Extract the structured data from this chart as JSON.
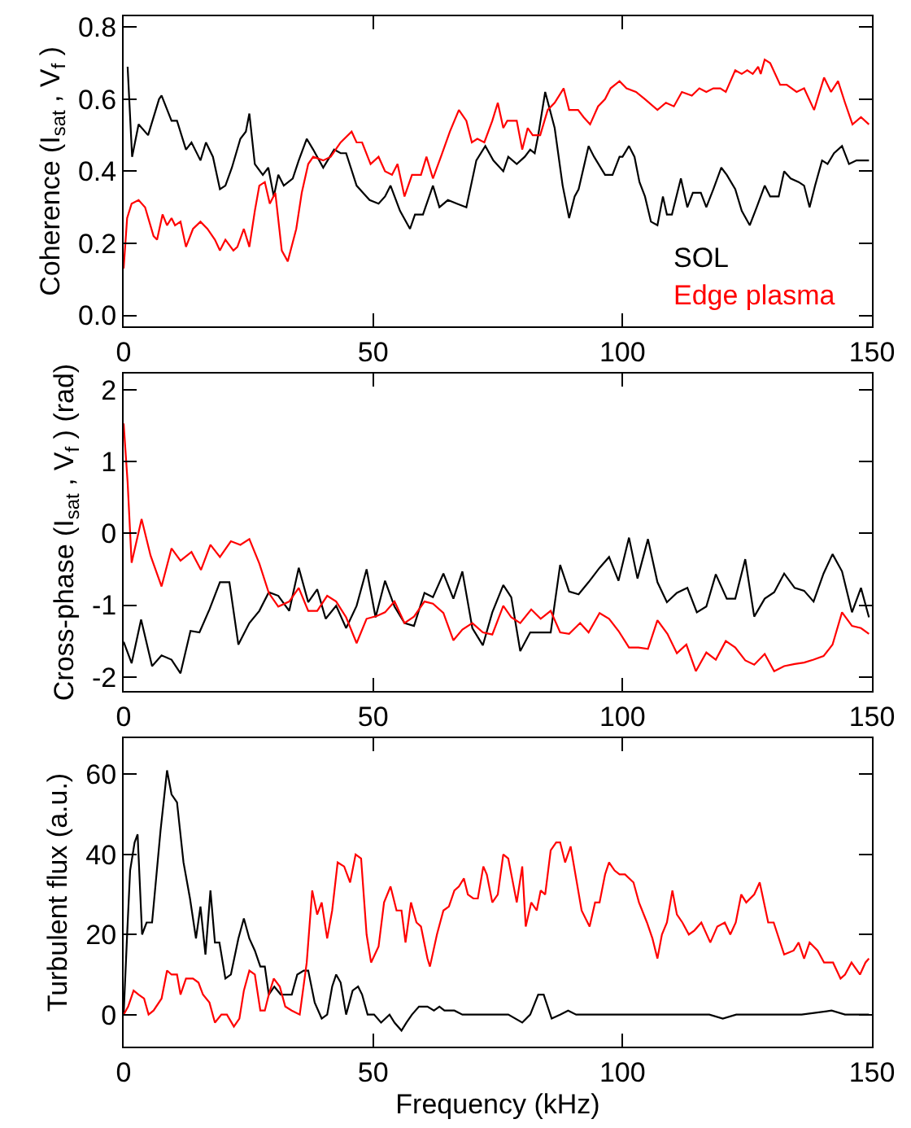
{
  "chart_data": [
    {
      "type": "line",
      "ylabel": "Coherence (I$_{sat}$ , V$_{f}$ )",
      "xlim": [
        0,
        150
      ],
      "xticks": [
        0,
        50,
        100,
        150
      ],
      "ylim": [
        -0.03,
        0.83
      ],
      "yticks": [
        {
          "value": 0,
          "label": "0.0"
        },
        0.2,
        0.4,
        0.6,
        0.8
      ],
      "series": [
        {
          "name": "SOL",
          "color": "#000000",
          "x": [
            0.8,
            1.7,
            3.0,
            4.9,
            7.1,
            7.6,
            9.6,
            10.7,
            12.5,
            13.6,
            15.4,
            16.5,
            17.9,
            19.3,
            20.4,
            21.7,
            23.4,
            24.5,
            25.2,
            26.3,
            27.9,
            29.0,
            30.1,
            31.0,
            32.1,
            33.9,
            35.1,
            36.7,
            38.0,
            40.0,
            42.2,
            43.5,
            44.6,
            46.7,
            48.0,
            49.3,
            51.1,
            52.4,
            53.5,
            55.4,
            57.4,
            58.4,
            60.0,
            62.0,
            63.3,
            65.0,
            66.8,
            68.7,
            70.7,
            72.5,
            74.1,
            76.1,
            77.1,
            78.8,
            80.4,
            81.5,
            82.4,
            83.1,
            84.5,
            86.4,
            88.0,
            89.3,
            90.4,
            91.2,
            93.2,
            94.3,
            96.5,
            98.0,
            99.4,
            100.0,
            101.3,
            102.4,
            103.4,
            104.5,
            105.7,
            107.0,
            108.1,
            108.9,
            109.9,
            111.7,
            113.0,
            114.1,
            115.7,
            116.8,
            118.2,
            119.8,
            120.9,
            122.6,
            123.9,
            125.5,
            126.9,
            128.5,
            129.6,
            131.3,
            132.4,
            133.7,
            135.3,
            136.4,
            137.5,
            138.6,
            140.0,
            141.1,
            142.4,
            144.0,
            145.4,
            146.9,
            148.3,
            149.4
          ],
          "values": [
            0.69,
            0.44,
            0.53,
            0.5,
            0.6,
            0.61,
            0.54,
            0.54,
            0.46,
            0.48,
            0.43,
            0.48,
            0.44,
            0.35,
            0.36,
            0.41,
            0.49,
            0.51,
            0.56,
            0.42,
            0.39,
            0.41,
            0.33,
            0.39,
            0.36,
            0.38,
            0.43,
            0.49,
            0.46,
            0.41,
            0.46,
            0.45,
            0.45,
            0.36,
            0.34,
            0.32,
            0.31,
            0.33,
            0.36,
            0.29,
            0.24,
            0.28,
            0.28,
            0.36,
            0.3,
            0.32,
            0.31,
            0.3,
            0.43,
            0.47,
            0.43,
            0.4,
            0.44,
            0.42,
            0.44,
            0.46,
            0.45,
            0.5,
            0.62,
            0.52,
            0.36,
            0.27,
            0.33,
            0.35,
            0.47,
            0.44,
            0.39,
            0.39,
            0.44,
            0.44,
            0.47,
            0.44,
            0.37,
            0.33,
            0.26,
            0.25,
            0.33,
            0.28,
            0.28,
            0.38,
            0.3,
            0.34,
            0.34,
            0.3,
            0.35,
            0.41,
            0.39,
            0.35,
            0.29,
            0.25,
            0.3,
            0.36,
            0.33,
            0.33,
            0.4,
            0.38,
            0.37,
            0.36,
            0.3,
            0.36,
            0.43,
            0.42,
            0.45,
            0.47,
            0.42,
            0.43,
            0.43,
            0.43
          ]
        },
        {
          "name": "Edge plasma",
          "color": "#ff0000",
          "x": [
            0.0,
            0.7,
            1.6,
            3.0,
            4.3,
            6.0,
            6.7,
            7.8,
            8.7,
            9.6,
            10.3,
            11.4,
            12.5,
            13.9,
            15.4,
            16.8,
            18.3,
            19.3,
            20.4,
            22.0,
            22.8,
            24.1,
            25.2,
            26.3,
            27.2,
            28.3,
            29.3,
            30.4,
            31.7,
            32.9,
            34.6,
            35.7,
            37.0,
            38.0,
            40.0,
            41.5,
            43.5,
            45.7,
            46.7,
            47.8,
            49.5,
            51.1,
            52.4,
            53.8,
            54.9,
            56.3,
            57.8,
            59.6,
            60.7,
            62.0,
            63.6,
            65.4,
            67.2,
            68.7,
            69.8,
            70.9,
            72.3,
            73.9,
            75.0,
            76.1,
            76.9,
            78.8,
            79.9,
            81.0,
            82.0,
            83.5,
            85.0,
            86.4,
            88.2,
            89.3,
            91.1,
            92.2,
            93.5,
            95.1,
            96.5,
            97.6,
            99.4,
            100.8,
            102.7,
            104.5,
            107.0,
            108.7,
            110.3,
            111.9,
            113.9,
            115.4,
            116.8,
            118.2,
            119.6,
            120.7,
            122.6,
            123.9,
            125.0,
            126.1,
            127.2,
            127.7,
            128.5,
            129.6,
            131.6,
            132.9,
            134.9,
            136.4,
            138.4,
            140.4,
            141.8,
            143.2,
            144.6,
            146.1,
            147.8,
            149.4
          ],
          "values": [
            0.13,
            0.27,
            0.31,
            0.32,
            0.3,
            0.22,
            0.21,
            0.28,
            0.25,
            0.27,
            0.25,
            0.26,
            0.19,
            0.24,
            0.26,
            0.24,
            0.21,
            0.18,
            0.21,
            0.18,
            0.19,
            0.24,
            0.19,
            0.29,
            0.36,
            0.37,
            0.31,
            0.34,
            0.18,
            0.15,
            0.24,
            0.34,
            0.42,
            0.44,
            0.43,
            0.44,
            0.48,
            0.51,
            0.48,
            0.48,
            0.42,
            0.44,
            0.4,
            0.39,
            0.42,
            0.33,
            0.39,
            0.39,
            0.44,
            0.38,
            0.44,
            0.51,
            0.57,
            0.54,
            0.48,
            0.49,
            0.48,
            0.54,
            0.59,
            0.52,
            0.54,
            0.54,
            0.46,
            0.52,
            0.5,
            0.5,
            0.57,
            0.59,
            0.63,
            0.57,
            0.57,
            0.55,
            0.53,
            0.58,
            0.6,
            0.63,
            0.65,
            0.63,
            0.62,
            0.6,
            0.57,
            0.59,
            0.58,
            0.62,
            0.61,
            0.63,
            0.62,
            0.63,
            0.63,
            0.62,
            0.68,
            0.67,
            0.68,
            0.67,
            0.69,
            0.67,
            0.71,
            0.7,
            0.64,
            0.64,
            0.62,
            0.63,
            0.57,
            0.66,
            0.62,
            0.65,
            0.59,
            0.53,
            0.55,
            0.53
          ]
        }
      ]
    },
    {
      "type": "line",
      "ylabel": "Cross-phase (I$_{sat}$ , V$_{f}$ ) (rad)",
      "xlim": [
        0,
        150
      ],
      "xticks": [
        0,
        50,
        100,
        150
      ],
      "ylim": [
        -2.2,
        2.23
      ],
      "yticks": [
        -2,
        -1,
        0,
        1,
        2
      ],
      "series": [
        {
          "color": "#000000",
          "x": [
            0,
            1.6,
            3.5,
            5.7,
            7.6,
            9.6,
            11.4,
            13.4,
            15.2,
            17.2,
            19.3,
            21.2,
            23.0,
            25.2,
            27.2,
            29.1,
            31.0,
            33.2,
            35.1,
            37.0,
            38.8,
            40.5,
            42.6,
            44.6,
            46.7,
            48.7,
            50.5,
            52.4,
            54.3,
            56.3,
            58.2,
            60.3,
            62.0,
            64.1,
            66.1,
            67.9,
            69.9,
            72.0,
            73.9,
            76.1,
            77.7,
            79.5,
            81.5,
            85.6,
            87.5,
            89.3,
            91.2,
            93.2,
            95.4,
            97.3,
            99.2,
            101.3,
            103.0,
            105.1,
            107.0,
            108.9,
            110.9,
            113.0,
            114.9,
            116.8,
            118.7,
            120.9,
            122.6,
            124.6,
            126.4,
            128.5,
            130.4,
            132.4,
            134.5,
            136.4,
            138.3,
            140.3,
            142.1,
            144.0,
            146.0,
            147.8,
            149.4
          ],
          "values": [
            -1.51,
            -1.81,
            -1.2,
            -1.85,
            -1.7,
            -1.76,
            -1.95,
            -1.36,
            -1.38,
            -1.06,
            -0.68,
            -0.68,
            -1.55,
            -1.25,
            -1.08,
            -0.82,
            -0.87,
            -1.08,
            -0.48,
            -0.96,
            -0.78,
            -1.19,
            -1.01,
            -1.32,
            -1.01,
            -0.5,
            -1.17,
            -0.66,
            -1.02,
            -1.25,
            -1.29,
            -0.83,
            -0.89,
            -0.56,
            -0.91,
            -0.53,
            -1.32,
            -1.56,
            -1.1,
            -0.72,
            -0.89,
            -1.64,
            -1.38,
            -1.38,
            -0.44,
            -0.81,
            -0.85,
            -0.68,
            -0.48,
            -0.33,
            -0.66,
            -0.06,
            -0.63,
            -0.08,
            -0.68,
            -0.96,
            -0.83,
            -0.76,
            -1.1,
            -1.02,
            -0.57,
            -0.91,
            -0.91,
            -0.36,
            -1.16,
            -0.91,
            -0.82,
            -0.56,
            -0.76,
            -0.8,
            -0.95,
            -0.56,
            -0.29,
            -0.53,
            -1.1,
            -0.76,
            -1.17
          ]
        },
        {
          "color": "#ff0000",
          "x": [
            0,
            0.8,
            1.6,
            3.6,
            5.4,
            7.6,
            9.6,
            11.4,
            13.6,
            15.5,
            17.4,
            19.3,
            21.5,
            23.4,
            25.2,
            27.2,
            29.1,
            31.0,
            33.2,
            35.1,
            37.0,
            38.8,
            40.8,
            42.6,
            44.6,
            46.7,
            48.7,
            50.8,
            52.4,
            54.3,
            56.3,
            58.2,
            60.3,
            62.0,
            64.1,
            66.1,
            67.9,
            69.9,
            72.0,
            73.9,
            76.1,
            77.7,
            79.5,
            81.7,
            83.6,
            85.6,
            87.5,
            89.3,
            91.5,
            93.2,
            95.4,
            97.3,
            99.2,
            101.3,
            103.2,
            105.1,
            107.0,
            109.0,
            110.9,
            112.8,
            114.7,
            116.8,
            118.7,
            120.7,
            122.6,
            124.6,
            126.4,
            128.5,
            130.4,
            132.4,
            134.5,
            136.4,
            138.3,
            140.3,
            142.1,
            144.0,
            146.0,
            147.8,
            149.4
          ],
          "values": [
            1.53,
            0.71,
            -0.41,
            0.2,
            -0.31,
            -0.74,
            -0.21,
            -0.38,
            -0.26,
            -0.51,
            -0.16,
            -0.33,
            -0.11,
            -0.16,
            -0.08,
            -0.42,
            -0.83,
            -1.02,
            -0.95,
            -0.76,
            -1.08,
            -1.08,
            -0.87,
            -0.95,
            -1.17,
            -1.53,
            -1.19,
            -1.15,
            -1.1,
            -0.95,
            -1.25,
            -1.16,
            -0.95,
            -0.98,
            -1.11,
            -1.49,
            -1.34,
            -1.25,
            -1.38,
            -1.41,
            -1.01,
            -1.17,
            -1.25,
            -1.06,
            -1.19,
            -1.08,
            -1.38,
            -1.4,
            -1.25,
            -1.38,
            -1.11,
            -1.19,
            -1.36,
            -1.59,
            -1.59,
            -1.61,
            -1.21,
            -1.4,
            -1.67,
            -1.55,
            -1.92,
            -1.66,
            -1.76,
            -1.5,
            -1.59,
            -1.77,
            -1.83,
            -1.68,
            -1.92,
            -1.85,
            -1.82,
            -1.8,
            -1.76,
            -1.71,
            -1.55,
            -1.1,
            -1.29,
            -1.32,
            -1.4
          ]
        }
      ]
    },
    {
      "type": "line",
      "xlabel": "Frequency (kHz)",
      "ylabel": "Turbulent flux (a.u.)",
      "xlim": [
        0,
        150
      ],
      "xticks": [
        0,
        50,
        100,
        150
      ],
      "ylim": [
        -8,
        69
      ],
      "yticks": [
        0,
        20,
        40,
        60
      ],
      "series": [
        {
          "color": "#000000",
          "x": [
            0,
            0.7,
            1.3,
            2.2,
            2.8,
            3.7,
            4.6,
            5.7,
            7.4,
            8.7,
            9.6,
            10.7,
            12.0,
            13.3,
            14.5,
            15.4,
            16.4,
            17.4,
            18.3,
            19.2,
            20.4,
            21.5,
            23.0,
            24.1,
            25.2,
            26.3,
            27.4,
            28.3,
            29.1,
            30.2,
            31.5,
            33.7,
            34.8,
            36.1,
            37.0,
            38.3,
            39.7,
            40.8,
            41.8,
            42.6,
            43.5,
            44.6,
            45.9,
            47.0,
            47.8,
            48.9,
            50.2,
            51.6,
            53.3,
            54.3,
            55.7,
            56.7,
            57.8,
            59.2,
            60.9,
            62.2,
            63.3,
            64.3,
            66.3,
            67.9,
            69.8,
            71.7,
            73.4,
            76.1,
            77.1,
            79.9,
            81.5,
            83.1,
            84.2,
            85.8,
            87.5,
            89.1,
            90.7,
            94.5,
            100,
            105.4,
            110.9,
            117.4,
            120.1,
            122.8,
            129.9,
            135.9,
            141.9,
            144.6,
            149.4
          ],
          "values": [
            0,
            20,
            36,
            43,
            45,
            20,
            23,
            23,
            46,
            61,
            55,
            53,
            38,
            29,
            19,
            27,
            15,
            31,
            18,
            18,
            9,
            10,
            19,
            24,
            19,
            16,
            12,
            12,
            5,
            7,
            5,
            5,
            10,
            11,
            11,
            3,
            -1,
            0,
            7,
            10,
            8,
            0,
            6,
            7,
            5,
            0,
            0,
            -2,
            0,
            -2,
            -4,
            -2,
            0,
            2,
            2,
            1,
            2,
            1,
            1,
            0,
            0,
            0,
            0,
            0,
            0,
            -2,
            0,
            5,
            5,
            -1,
            0,
            1,
            0,
            0,
            0,
            0,
            0,
            0,
            -1,
            0,
            0,
            0,
            1,
            0,
            0
          ]
        },
        {
          "color": "#ff0000",
          "x": [
            0,
            0.9,
            2.0,
            3.0,
            4.1,
            5.0,
            6.0,
            7.6,
            8.7,
            9.6,
            10.7,
            11.4,
            12.5,
            13.9,
            15.0,
            15.9,
            17.2,
            18.3,
            19.6,
            20.7,
            22.1,
            23.2,
            24.1,
            25.2,
            26.3,
            27.4,
            28.3,
            29.1,
            30.1,
            31.3,
            32.4,
            33.7,
            35.3,
            36.7,
            37.8,
            38.8,
            39.7,
            40.8,
            41.8,
            42.9,
            44.2,
            45.4,
            46.5,
            47.6,
            48.7,
            49.6,
            51.1,
            52.2,
            53.5,
            54.7,
            55.7,
            56.5,
            57.6,
            58.7,
            59.6,
            60.9,
            61.4,
            62.8,
            64.1,
            65.2,
            66.3,
            67.2,
            68.2,
            69.0,
            70.1,
            71.0,
            72.1,
            72.8,
            73.9,
            75.0,
            76.1,
            77.1,
            78.8,
            79.9,
            80.6,
            81.7,
            82.8,
            83.6,
            84.5,
            85.6,
            86.7,
            87.5,
            88.5,
            89.6,
            90.7,
            91.8,
            93.4,
            94.5,
            95.4,
            96.5,
            97.3,
            98.4,
            99.4,
            100.5,
            102.2,
            103.3,
            104.9,
            106.0,
            107.0,
            107.9,
            108.9,
            110.0,
            110.9,
            112.0,
            113.3,
            114.4,
            115.8,
            117.6,
            119.0,
            120.5,
            121.6,
            122.7,
            123.8,
            124.8,
            126.4,
            127.5,
            129.2,
            130.3,
            132.4,
            134.3,
            135.3,
            136.4,
            137.5,
            139.1,
            140.4,
            142.2,
            143.7,
            144.6,
            145.9,
            147.6,
            148.7,
            149.4
          ],
          "values": [
            0,
            2,
            6,
            5,
            4,
            0,
            1,
            4,
            11,
            10,
            10,
            5,
            9,
            9,
            8,
            5,
            3,
            -2,
            0,
            0,
            -3,
            -1,
            6,
            11,
            10,
            1,
            1,
            5,
            9,
            7,
            2,
            1,
            0,
            13,
            31,
            25,
            28,
            19,
            26,
            38,
            37,
            33,
            40,
            39,
            20,
            13,
            17,
            28,
            32,
            26,
            26,
            18,
            28,
            23,
            22,
            14,
            12,
            20,
            26,
            27,
            31,
            32,
            34,
            30,
            29,
            29,
            37,
            35,
            28,
            30,
            40,
            39,
            28,
            37,
            22,
            28,
            26,
            31,
            30,
            41,
            43,
            43,
            38,
            42,
            34,
            26,
            22,
            28,
            28,
            35,
            38,
            36,
            35,
            35,
            33,
            28,
            23,
            19,
            14,
            20,
            23,
            31,
            25,
            23,
            20,
            21,
            23,
            18,
            22,
            23,
            20,
            23,
            30,
            28,
            30,
            33,
            23,
            23,
            15,
            16,
            18,
            14,
            18,
            16,
            13,
            13,
            9,
            10,
            13,
            10,
            13,
            14
          ]
        }
      ]
    }
  ]
}
